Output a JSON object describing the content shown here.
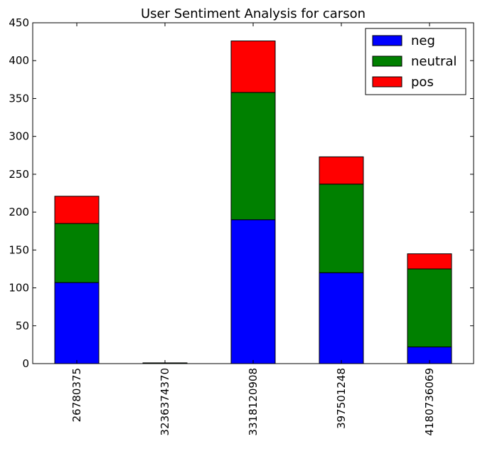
{
  "chart_data": {
    "type": "bar",
    "stacked": true,
    "title": "User Sentiment Analysis for carson",
    "xlabel": "",
    "ylabel": "",
    "categories": [
      "26780375",
      "3236374370",
      "3318120908",
      "397501248",
      "4180736069"
    ],
    "series": [
      {
        "name": "neg",
        "color": "#0000ff",
        "values": [
          107,
          0,
          190,
          120,
          22
        ]
      },
      {
        "name": "neutral",
        "color": "#008000",
        "values": [
          78,
          1,
          168,
          117,
          103
        ]
      },
      {
        "name": "pos",
        "color": "#ff0000",
        "values": [
          36,
          0,
          68,
          36,
          20
        ]
      }
    ],
    "ylim": [
      0,
      450
    ],
    "yticks": [
      "0",
      "50",
      "100",
      "150",
      "200",
      "250",
      "300",
      "350",
      "400",
      "450"
    ],
    "grid": false,
    "legend_position": "top-right"
  }
}
